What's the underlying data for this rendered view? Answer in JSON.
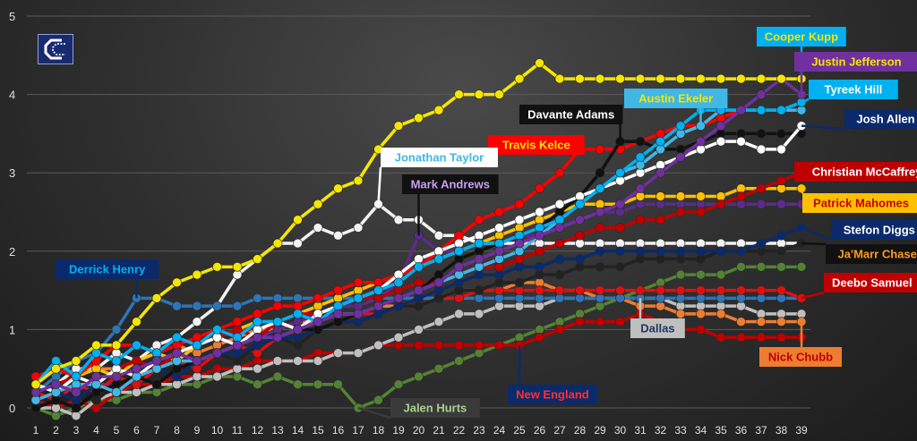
{
  "chart_data": {
    "type": "line",
    "title": "",
    "xlabel": "",
    "ylabel": "",
    "x": [
      1,
      2,
      3,
      4,
      5,
      6,
      7,
      8,
      9,
      10,
      11,
      12,
      13,
      14,
      15,
      16,
      17,
      18,
      19,
      20,
      21,
      22,
      23,
      24,
      25,
      26,
      27,
      28,
      29,
      30,
      31,
      32,
      33,
      34,
      35,
      36,
      37,
      38,
      39
    ],
    "xlim": [
      1,
      39
    ],
    "ylim": [
      0,
      5
    ],
    "yticks": [
      0,
      1,
      2,
      3,
      4,
      5
    ],
    "grid": true,
    "legend": "none",
    "series": [
      {
        "name": "Cooper Kupp",
        "color": "#f5e600",
        "values": [
          0.3,
          0.5,
          0.6,
          0.8,
          0.8,
          1.1,
          1.4,
          1.6,
          1.7,
          1.8,
          1.8,
          1.9,
          2.1,
          2.4,
          2.6,
          2.8,
          2.9,
          3.3,
          3.6,
          3.7,
          3.8,
          4.0,
          4.0,
          4.0,
          4.2,
          4.4,
          4.2,
          4.2,
          4.2,
          4.2,
          4.2,
          4.2,
          4.2,
          4.2,
          4.2,
          4.2,
          4.2,
          4.2,
          4.2
        ]
      },
      {
        "name": "Justin Jefferson",
        "color": "#7030a0",
        "values": [
          0.2,
          0.3,
          0.2,
          0.4,
          0.4,
          0.5,
          0.6,
          0.7,
          0.6,
          0.7,
          0.8,
          0.9,
          0.9,
          1.0,
          1.1,
          1.2,
          1.2,
          1.3,
          1.4,
          1.5,
          1.6,
          1.8,
          1.9,
          2.0,
          2.1,
          2.2,
          2.3,
          2.4,
          2.5,
          2.6,
          2.8,
          3.0,
          3.2,
          3.4,
          3.6,
          3.8,
          4.0,
          4.2,
          4.0
        ]
      },
      {
        "name": "Tyreek Hill",
        "color": "#00b0f0",
        "values": [
          0.3,
          0.6,
          0.4,
          0.7,
          0.6,
          0.8,
          0.7,
          0.9,
          0.8,
          1.0,
          0.9,
          1.1,
          1.1,
          1.2,
          1.1,
          1.3,
          1.4,
          1.5,
          1.6,
          1.8,
          1.9,
          2.0,
          2.1,
          2.1,
          2.2,
          2.3,
          2.4,
          2.6,
          2.8,
          3.0,
          3.2,
          3.4,
          3.6,
          3.8,
          3.8,
          3.8,
          3.8,
          3.8,
          3.9
        ]
      },
      {
        "name": "Austin Ekeler",
        "color": "#41b7e6",
        "values": [
          0.1,
          0.2,
          0.3,
          0.3,
          0.2,
          0.4,
          0.5,
          0.6,
          0.6,
          0.7,
          0.8,
          0.9,
          0.9,
          1.0,
          1.1,
          1.2,
          1.2,
          1.3,
          1.4,
          1.5,
          1.6,
          1.7,
          1.8,
          1.9,
          2.0,
          2.2,
          2.4,
          2.6,
          2.8,
          3.0,
          3.1,
          3.3,
          3.5,
          3.6,
          3.8,
          3.8,
          3.8,
          3.8,
          3.8
        ]
      },
      {
        "name": "Josh Allen",
        "color": "#ffffff",
        "values": [
          0.3,
          0.2,
          0.4,
          0.3,
          0.5,
          0.4,
          0.6,
          0.7,
          0.8,
          0.9,
          0.8,
          1.0,
          1.1,
          1.0,
          1.2,
          1.3,
          1.4,
          1.5,
          1.7,
          1.9,
          2.0,
          2.1,
          2.2,
          2.3,
          2.4,
          2.5,
          2.6,
          2.7,
          2.8,
          2.9,
          3.0,
          3.1,
          3.2,
          3.3,
          3.4,
          3.4,
          3.3,
          3.3,
          3.6
        ]
      },
      {
        "name": "Davante Adams",
        "color": "#111111",
        "values": [
          0.0,
          0.1,
          0.0,
          0.2,
          0.3,
          0.4,
          0.3,
          0.5,
          0.6,
          0.7,
          0.8,
          0.9,
          0.9,
          1.0,
          1.0,
          1.1,
          1.2,
          1.3,
          1.4,
          1.5,
          1.7,
          1.9,
          2.0,
          2.1,
          2.2,
          2.3,
          2.5,
          2.7,
          3.0,
          3.4,
          3.4,
          3.3,
          3.3,
          3.4,
          3.5,
          3.5,
          3.5,
          3.5,
          3.5
        ]
      },
      {
        "name": "Travis Kelce",
        "color": "#ff0000",
        "values": [
          0.4,
          0.5,
          0.4,
          0.6,
          0.8,
          0.8,
          0.7,
          0.8,
          0.9,
          1.0,
          1.1,
          1.2,
          1.3,
          1.3,
          1.4,
          1.5,
          1.6,
          1.6,
          1.7,
          1.8,
          2.0,
          2.2,
          2.4,
          2.5,
          2.6,
          2.8,
          3.0,
          3.3,
          3.3,
          3.3,
          3.4,
          3.5,
          3.6,
          3.6,
          3.7,
          3.8,
          3.8,
          3.8,
          3.8
        ]
      },
      {
        "name": "Christian McCaffrey",
        "color": "#c00000",
        "values": [
          0.2,
          0.3,
          0.4,
          0.3,
          0.5,
          0.6,
          0.5,
          0.7,
          0.8,
          0.9,
          1.0,
          0.9,
          1.1,
          1.2,
          1.2,
          1.3,
          1.4,
          1.4,
          1.5,
          1.6,
          1.6,
          1.7,
          1.8,
          1.8,
          1.9,
          2.0,
          2.1,
          2.2,
          2.3,
          2.3,
          2.4,
          2.4,
          2.5,
          2.5,
          2.6,
          2.7,
          2.8,
          2.9,
          3.0
        ]
      },
      {
        "name": "Patrick Mahomes",
        "color": "#ffc000",
        "values": [
          0.3,
          0.2,
          0.4,
          0.5,
          0.4,
          0.6,
          0.7,
          0.6,
          0.8,
          0.9,
          1.0,
          1.1,
          1.1,
          1.2,
          1.3,
          1.4,
          1.5,
          1.6,
          1.7,
          1.8,
          1.9,
          2.0,
          2.1,
          2.2,
          2.3,
          2.4,
          2.5,
          2.6,
          2.6,
          2.6,
          2.7,
          2.7,
          2.7,
          2.7,
          2.7,
          2.8,
          2.8,
          2.8,
          2.8
        ]
      },
      {
        "name": "Stefon Diggs",
        "color": "#0b2a6b",
        "values": [
          0.1,
          0.2,
          0.1,
          0.3,
          0.2,
          0.4,
          0.5,
          0.4,
          0.6,
          0.7,
          0.7,
          0.8,
          0.9,
          0.9,
          1.0,
          1.1,
          1.1,
          1.2,
          1.3,
          1.4,
          1.5,
          1.6,
          1.7,
          1.7,
          1.8,
          1.8,
          1.9,
          1.9,
          2.0,
          2.0,
          2.0,
          2.0,
          2.0,
          2.0,
          2.0,
          2.0,
          2.1,
          2.2,
          2.3
        ]
      },
      {
        "name": "Ja'Marr Chase",
        "color": "#222222",
        "values": [
          0.0,
          0.1,
          0.2,
          0.1,
          0.3,
          0.4,
          0.5,
          0.5,
          0.6,
          0.7,
          0.6,
          0.8,
          0.9,
          0.8,
          1.0,
          1.1,
          1.1,
          1.2,
          1.3,
          1.3,
          1.4,
          1.5,
          1.5,
          1.6,
          1.6,
          1.7,
          1.7,
          1.8,
          1.8,
          1.8,
          1.9,
          1.9,
          1.9,
          1.9,
          2.0,
          2.0,
          2.0,
          2.0,
          2.1
        ]
      },
      {
        "name": "Deebo Samuel",
        "color": "#e01010",
        "values": [
          0.2,
          0.1,
          0.3,
          0.2,
          0.4,
          0.3,
          0.5,
          0.6,
          0.5,
          0.7,
          0.8,
          0.7,
          0.9,
          1.0,
          1.0,
          1.1,
          1.2,
          1.2,
          1.3,
          1.3,
          1.4,
          1.4,
          1.5,
          1.5,
          1.5,
          1.5,
          1.5,
          1.5,
          1.5,
          1.5,
          1.5,
          1.5,
          1.5,
          1.5,
          1.5,
          1.5,
          1.5,
          1.5,
          1.4
        ]
      },
      {
        "name": "Derrick Henry",
        "color": "#2e75b6",
        "values": [
          0.2,
          0.4,
          0.6,
          0.7,
          1.0,
          1.4,
          1.4,
          1.3,
          1.3,
          1.3,
          1.3,
          1.4,
          1.4,
          1.4,
          1.4,
          1.4,
          1.4,
          1.4,
          1.4,
          1.4,
          1.4,
          1.4,
          1.4,
          1.4,
          1.4,
          1.4,
          1.4,
          1.4,
          1.4,
          1.4,
          1.4,
          1.4,
          1.4,
          1.4,
          1.4,
          1.4,
          1.4,
          1.4,
          1.4
        ]
      },
      {
        "name": "Jonathan Taylor",
        "color": "#f2f2f2",
        "values": [
          0.2,
          0.3,
          0.5,
          0.5,
          0.7,
          0.6,
          0.8,
          0.9,
          1.1,
          1.3,
          1.7,
          1.9,
          2.1,
          2.1,
          2.3,
          2.2,
          2.3,
          2.6,
          2.4,
          2.4,
          2.2,
          2.2,
          2.1,
          2.1,
          2.1,
          2.1,
          2.1,
          2.1,
          2.1,
          2.1,
          2.1,
          2.1,
          2.1,
          2.1,
          2.1,
          2.1,
          2.1,
          2.1,
          2.1
        ]
      },
      {
        "name": "Mark Andrews",
        "color": "#5b2c8a",
        "values": [
          0.1,
          0.2,
          0.1,
          0.3,
          0.3,
          0.4,
          0.5,
          0.5,
          0.6,
          0.7,
          0.8,
          0.9,
          1.0,
          1.1,
          1.2,
          1.3,
          1.3,
          1.4,
          1.6,
          2.2,
          2.0,
          2.0,
          2.1,
          2.1,
          2.2,
          2.2,
          2.3,
          2.4,
          2.5,
          2.5,
          2.6,
          2.6,
          2.6,
          2.6,
          2.6,
          2.6,
          2.6,
          2.6,
          2.6
        ]
      },
      {
        "name": "Nick Chubb",
        "color": "#ed7d31",
        "values": [
          0.2,
          0.3,
          0.4,
          0.5,
          0.5,
          0.6,
          0.7,
          0.8,
          0.7,
          0.8,
          0.9,
          1.0,
          1.0,
          1.1,
          1.1,
          1.2,
          1.2,
          1.3,
          1.3,
          1.4,
          1.4,
          1.5,
          1.5,
          1.5,
          1.6,
          1.6,
          1.5,
          1.5,
          1.4,
          1.4,
          1.3,
          1.3,
          1.2,
          1.2,
          1.2,
          1.1,
          1.1,
          1.1,
          1.1
        ]
      },
      {
        "name": "Dallas",
        "color": "#bfbfbf",
        "values": [
          0.0,
          0.0,
          -0.1,
          0.1,
          0.2,
          0.2,
          0.3,
          0.3,
          0.4,
          0.4,
          0.5,
          0.5,
          0.6,
          0.6,
          0.6,
          0.7,
          0.7,
          0.8,
          0.9,
          1.0,
          1.1,
          1.2,
          1.2,
          1.3,
          1.3,
          1.3,
          1.4,
          1.4,
          1.4,
          1.4,
          1.4,
          1.4,
          1.3,
          1.3,
          1.3,
          1.3,
          1.2,
          1.2,
          1.2
        ]
      },
      {
        "name": "New England",
        "color": "#c00000",
        "values": [
          0.1,
          0.0,
          0.1,
          0.0,
          0.2,
          0.3,
          0.3,
          0.4,
          0.4,
          0.5,
          0.5,
          0.6,
          0.6,
          0.6,
          0.7,
          0.7,
          0.7,
          0.8,
          0.8,
          0.8,
          0.8,
          0.8,
          0.8,
          0.8,
          0.8,
          0.9,
          1.0,
          1.1,
          1.1,
          1.1,
          1.2,
          1.1,
          1.0,
          1.0,
          0.9,
          0.9,
          0.9,
          0.9,
          0.9
        ]
      },
      {
        "name": "Jalen Hurts",
        "color": "#548235",
        "values": [
          0.0,
          -0.1,
          0.0,
          0.1,
          0.1,
          0.2,
          0.2,
          0.3,
          0.3,
          0.4,
          0.4,
          0.3,
          0.4,
          0.3,
          0.3,
          0.3,
          0.0,
          0.1,
          0.3,
          0.4,
          0.5,
          0.6,
          0.7,
          0.8,
          0.9,
          1.0,
          1.1,
          1.2,
          1.3,
          1.4,
          1.5,
          1.6,
          1.7,
          1.7,
          1.7,
          1.8,
          1.8,
          1.8,
          1.8
        ]
      }
    ],
    "annotations": [
      {
        "text": "Cooper Kupp",
        "series": "Cooper Kupp",
        "fg": "#f5e600",
        "bg": "#00b0f0"
      },
      {
        "text": "Justin Jefferson",
        "series": "Justin Jefferson",
        "fg": "#f5e600",
        "bg": "#7030a0"
      },
      {
        "text": "Tyreek Hill",
        "series": "Tyreek Hill",
        "fg": "#ffffff",
        "bg": "#00b0f0"
      },
      {
        "text": "Austin Ekeler",
        "series": "Austin Ekeler",
        "fg": "#f5e600",
        "bg": "#41b7e6"
      },
      {
        "text": "Josh Allen",
        "series": "Josh Allen",
        "fg": "#ffffff",
        "bg": "#0b2a6b"
      },
      {
        "text": "Davante Adams",
        "series": "Davante Adams",
        "fg": "#ffffff",
        "bg": "#111111"
      },
      {
        "text": "Travis Kelce",
        "series": "Travis Kelce",
        "fg": "#f5e600",
        "bg": "#ff0000"
      },
      {
        "text": "Christian McCaffrey",
        "series": "Christian McCaffrey",
        "fg": "#ffffff",
        "bg": "#c00000"
      },
      {
        "text": "Patrick Mahomes",
        "series": "Patrick Mahomes",
        "fg": "#c00000",
        "bg": "#ffc000"
      },
      {
        "text": "Stefon Diggs",
        "series": "Stefon Diggs",
        "fg": "#ffffff",
        "bg": "#0b2a6b"
      },
      {
        "text": "Ja'Marr Chase",
        "series": "Ja'Marr Chase",
        "fg": "#ff9a1f",
        "bg": "#111111"
      },
      {
        "text": "Deebo Samuel",
        "series": "Deebo Samuel",
        "fg": "#ffffff",
        "bg": "#c00000"
      },
      {
        "text": "Jonathan Taylor",
        "series": "Jonathan Taylor",
        "fg": "#41b7e6",
        "bg": "#ffffff"
      },
      {
        "text": "Mark Andrews",
        "series": "Mark Andrews",
        "fg": "#c9a0f0",
        "bg": "#111111"
      },
      {
        "text": "Derrick Henry",
        "series": "Derrick Henry",
        "fg": "#00b0f0",
        "bg": "#0b2a6b"
      },
      {
        "text": "Dallas",
        "series": "Dallas",
        "fg": "#1f3864",
        "bg": "#bfbfbf"
      },
      {
        "text": "Nick Chubb",
        "series": "Nick Chubb",
        "fg": "#c00000",
        "bg": "#ed7d31"
      },
      {
        "text": "New England",
        "series": "New England",
        "fg": "#ff3030",
        "bg": "#0b2a6b"
      },
      {
        "text": "Jalen Hurts",
        "series": "Jalen Hurts",
        "fg": "#a9d18e",
        "bg": "#3a3a3a"
      }
    ]
  }
}
